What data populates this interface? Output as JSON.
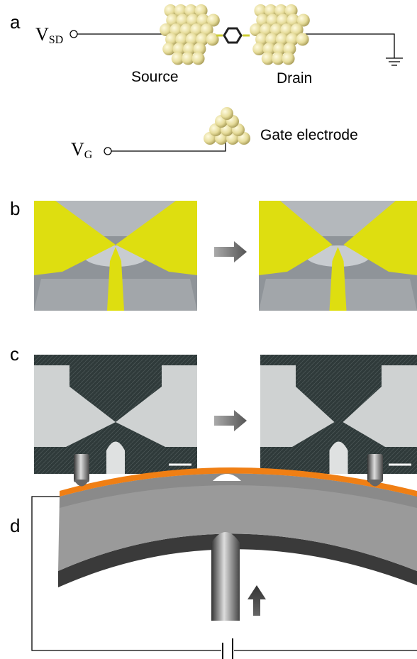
{
  "panels": [
    {
      "label": "a",
      "vsd": {
        "symbol": "V",
        "subscript": "SD"
      },
      "source": "Source",
      "drain": "Drain",
      "vg": {
        "symbol": "V",
        "subscript": "G"
      },
      "gate": "Gate electrode"
    },
    {
      "label": "b"
    },
    {
      "label": "c"
    },
    {
      "label": "d"
    }
  ]
}
